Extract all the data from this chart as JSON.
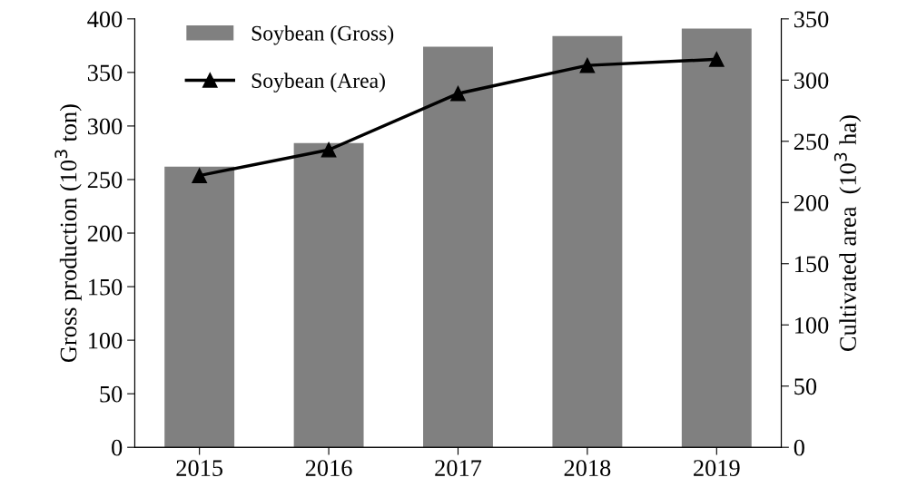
{
  "chart_data": {
    "type": "bar",
    "categories": [
      "2015",
      "2016",
      "2017",
      "2018",
      "2019"
    ],
    "ylabel": "Gross production (10$^{3}$ ton)",
    "y2label": "Cultivated area  (10$^{3}$ ha)",
    "series": [
      {
        "name": "Soybean (Gross)",
        "color": "#808080",
        "values": [
          262,
          284,
          374,
          384,
          391
        ]
      },
      {
        "name": "Soybean (Area)",
        "type": "line",
        "axis": "y2",
        "color": "#000000",
        "marker": "triangle",
        "values": [
          222,
          243,
          289,
          312,
          317
        ]
      }
    ],
    "ylim": [
      0,
      400
    ],
    "yticks": [
      0,
      50,
      100,
      150,
      200,
      250,
      300,
      350,
      400
    ],
    "y2lim": [
      0,
      350
    ],
    "y2ticks": [
      0,
      50,
      100,
      150,
      200,
      250,
      300,
      350
    ],
    "grid": false,
    "legend": "top left"
  }
}
